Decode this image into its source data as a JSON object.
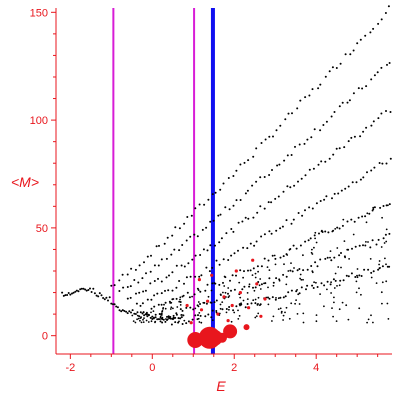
{
  "chart_data": {
    "type": "scatter",
    "title": "",
    "xlabel": "E",
    "ylabel": "<M>",
    "xlim": [
      -2.35,
      5.85
    ],
    "ylim": [
      -8.5,
      152
    ],
    "xticks": [
      -2,
      0,
      2,
      4
    ],
    "yticks": [
      0,
      50,
      100,
      150
    ],
    "grid": false,
    "colors": {
      "axis": "#e8161d",
      "black_points": "#000000",
      "red_points": "#e8161d",
      "magenta_line": "#d81dd6",
      "blue_line": "#1010f0"
    },
    "vertical_lines": [
      {
        "x": -0.95,
        "color": "magenta"
      },
      {
        "x": 1.02,
        "color": "magenta"
      },
      {
        "x": 1.48,
        "color": "blue"
      }
    ],
    "series": [
      {
        "color": "black",
        "marker": "dot",
        "bands": [
          {
            "x_start": -1.0,
            "x_end": 5.8,
            "y_start": 23,
            "y_end": 152
          },
          {
            "x_start": -0.8,
            "x_end": 5.8,
            "y_start": 20,
            "y_end": 127
          },
          {
            "x_start": -0.6,
            "x_end": 5.8,
            "y_start": 17,
            "y_end": 105
          },
          {
            "x_start": -0.4,
            "x_end": 5.8,
            "y_start": 14,
            "y_end": 82
          },
          {
            "x_start": -0.2,
            "x_end": 5.8,
            "y_start": 11,
            "y_end": 62
          },
          {
            "x_start": 0.0,
            "x_end": 5.8,
            "y_start": 8,
            "y_end": 46
          },
          {
            "x_start": 0.5,
            "x_end": 5.8,
            "y_start": 6,
            "y_end": 33
          }
        ],
        "hook_curve": [
          {
            "x": -2.2,
            "y": 19
          },
          {
            "x": -2.0,
            "y": 20
          },
          {
            "x": -1.8,
            "y": 21
          },
          {
            "x": -1.6,
            "y": 21
          },
          {
            "x": -1.4,
            "y": 19
          },
          {
            "x": -1.2,
            "y": 17
          },
          {
            "x": -1.0,
            "y": 14
          },
          {
            "x": -0.8,
            "y": 12
          },
          {
            "x": -0.6,
            "y": 11
          },
          {
            "x": -0.4,
            "y": 10
          },
          {
            "x": -0.2,
            "y": 9
          },
          {
            "x": 0.0,
            "y": 8
          },
          {
            "x": 0.2,
            "y": 7
          },
          {
            "x": 0.4,
            "y": 8
          },
          {
            "x": 0.6,
            "y": 9
          }
        ]
      },
      {
        "color": "red",
        "marker": "circle",
        "points": [
          {
            "x": 1.05,
            "y": -2,
            "size": 8
          },
          {
            "x": 1.28,
            "y": -1,
            "size": 5
          },
          {
            "x": 1.4,
            "y": -1,
            "size": 11
          },
          {
            "x": 1.52,
            "y": -1,
            "size": 8
          },
          {
            "x": 1.7,
            "y": -1,
            "size": 5
          },
          {
            "x": 1.9,
            "y": 2,
            "size": 7
          },
          {
            "x": 2.3,
            "y": 4,
            "size": 3
          },
          {
            "x": 1.2,
            "y": 12,
            "size": 1.6
          },
          {
            "x": 1.35,
            "y": 16,
            "size": 1.6
          },
          {
            "x": 1.6,
            "y": 10,
            "size": 1.6
          },
          {
            "x": 1.75,
            "y": 18,
            "size": 1.6
          },
          {
            "x": 1.95,
            "y": 14,
            "size": 1.6
          },
          {
            "x": 2.15,
            "y": 20,
            "size": 1.6
          },
          {
            "x": 2.35,
            "y": 13,
            "size": 1.6
          },
          {
            "x": 2.55,
            "y": 24,
            "size": 1.6
          },
          {
            "x": 2.75,
            "y": 17,
            "size": 1.6
          },
          {
            "x": 1.15,
            "y": 26,
            "size": 1.6
          },
          {
            "x": 1.45,
            "y": 28,
            "size": 1.6
          },
          {
            "x": 2.05,
            "y": 30,
            "size": 1.6
          },
          {
            "x": 2.45,
            "y": 35,
            "size": 1.6
          },
          {
            "x": 1.85,
            "y": 7,
            "size": 1.6
          },
          {
            "x": 2.65,
            "y": 9,
            "size": 1.6
          },
          {
            "x": 0.85,
            "y": 14,
            "size": 1.6
          },
          {
            "x": 0.95,
            "y": 6,
            "size": 1.6
          }
        ]
      }
    ]
  }
}
